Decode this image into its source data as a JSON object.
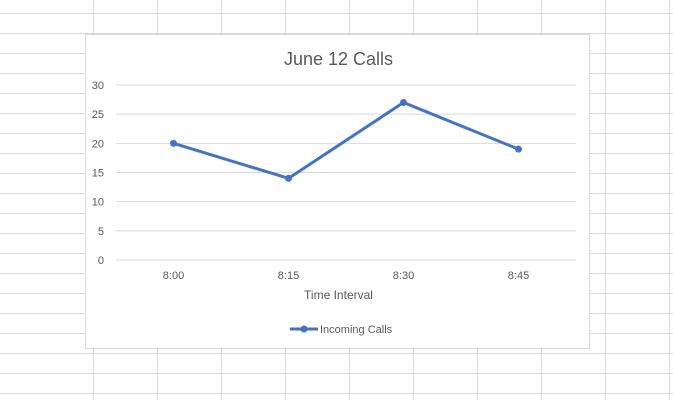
{
  "chart_data": {
    "type": "line",
    "title": "June 12 Calls",
    "xlabel": "Time Interval",
    "ylabel": "",
    "categories": [
      "8:00",
      "8:15",
      "8:30",
      "8:45"
    ],
    "series": [
      {
        "name": "Incoming Calls",
        "values": [
          20,
          14,
          27,
          19
        ]
      }
    ],
    "ylim": [
      0,
      30
    ],
    "yticks": [
      0,
      5,
      10,
      15,
      20,
      25,
      30
    ],
    "grid": true,
    "legend_position": "bottom",
    "colors": {
      "series": "#4472c4",
      "grid": "#d9d9d9",
      "text": "#595959"
    }
  }
}
